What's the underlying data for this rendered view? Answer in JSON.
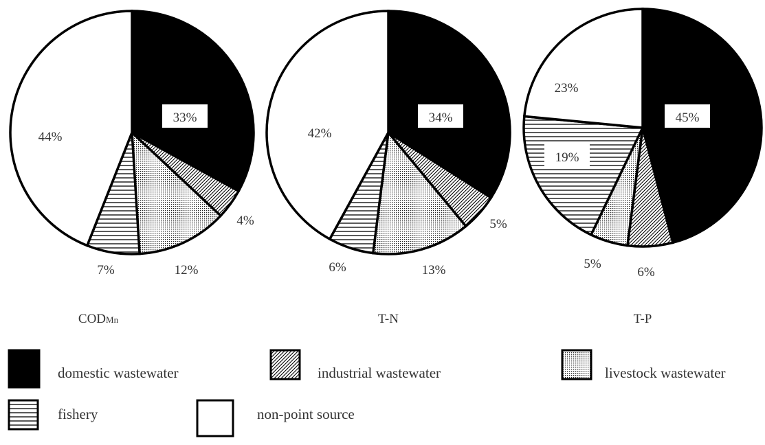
{
  "chart_data": [
    {
      "type": "pie",
      "title": "CODMn",
      "title_main": "COD",
      "title_sub": "Mn",
      "slices": [
        {
          "category": "domestic wastewater",
          "value": 33,
          "label": "33%"
        },
        {
          "category": "industrial wastewater",
          "value": 4,
          "label": "4%"
        },
        {
          "category": "livestock wastewater",
          "value": 12,
          "label": "12%"
        },
        {
          "category": "fishery",
          "value": 7,
          "label": "7%"
        },
        {
          "category": "non-point source",
          "value": 44,
          "label": "44%"
        }
      ]
    },
    {
      "type": "pie",
      "title": "T-N",
      "slices": [
        {
          "category": "domestic wastewater",
          "value": 34,
          "label": "34%"
        },
        {
          "category": "industrial wastewater",
          "value": 5,
          "label": "5%"
        },
        {
          "category": "livestock wastewater",
          "value": 13,
          "label": "13%"
        },
        {
          "category": "fishery",
          "value": 6,
          "label": "6%"
        },
        {
          "category": "non-point source",
          "value": 42,
          "label": "42%"
        }
      ]
    },
    {
      "type": "pie",
      "title": "T-P",
      "slices": [
        {
          "category": "domestic wastewater",
          "value": 45,
          "label": "45%"
        },
        {
          "category": "industrial wastewater",
          "value": 6,
          "label": "6%"
        },
        {
          "category": "livestock wastewater",
          "value": 5,
          "label": "5%"
        },
        {
          "category": "fishery",
          "value": 19,
          "label": "19%"
        },
        {
          "category": "non-point source",
          "value": 23,
          "label": "23%"
        }
      ]
    }
  ],
  "legend": {
    "placement": "bottom",
    "items": [
      {
        "key": "domestic",
        "label": "domestic wastewater",
        "pattern": "solid-black"
      },
      {
        "key": "industrial",
        "label": "industrial wastewater",
        "pattern": "diagonal-hatch"
      },
      {
        "key": "livestock",
        "label": "livestock wastewater",
        "pattern": "dots"
      },
      {
        "key": "fishery",
        "label": "fishery",
        "pattern": "horizontal-lines"
      },
      {
        "key": "nonpoint",
        "label": "non-point source",
        "pattern": "white"
      }
    ]
  },
  "colors": {
    "ink": "#000000",
    "background": "#ffffff",
    "text": "#333333"
  }
}
